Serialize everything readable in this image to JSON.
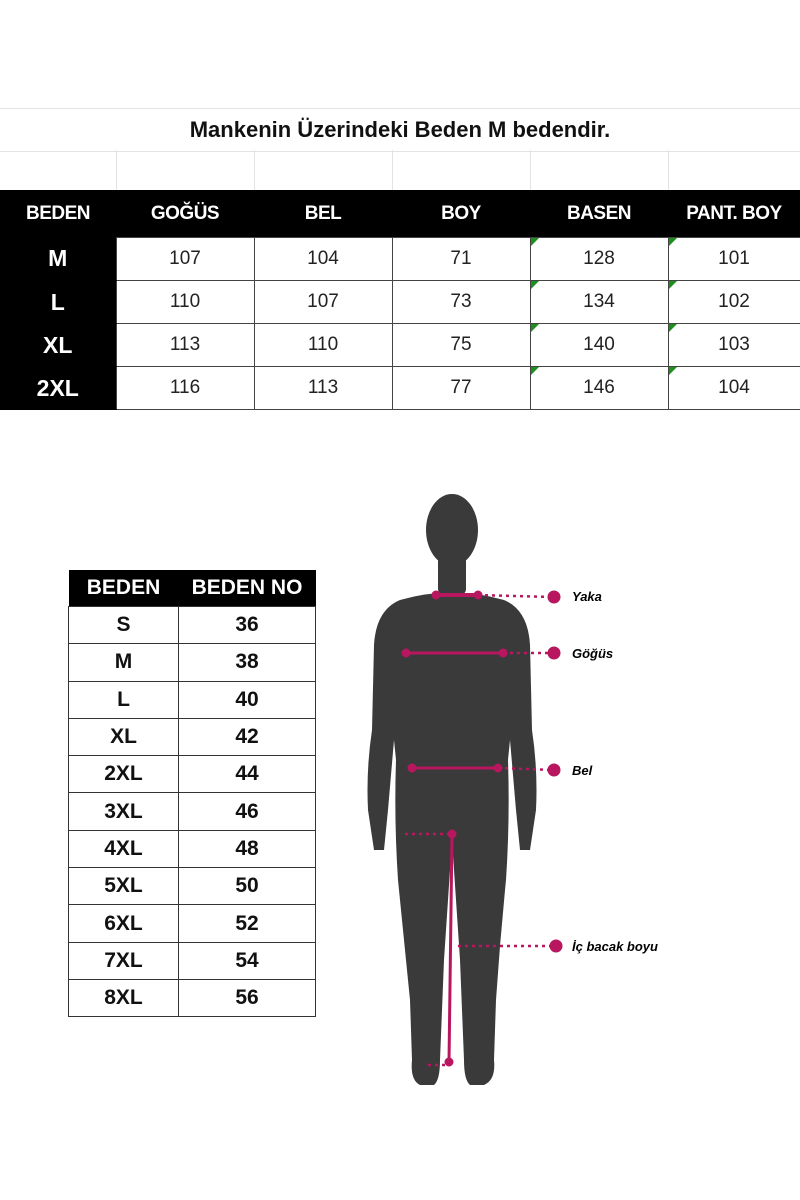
{
  "title": "Mankenin Üzerindeki Beden M bedendir.",
  "measurement_table": {
    "headers": [
      "BEDEN",
      "GOĞÜS",
      "BEL",
      "BOY",
      "BASEN",
      "PANT. BOY"
    ],
    "rows": [
      [
        "M",
        "107",
        "104",
        "71",
        "128",
        "101"
      ],
      [
        "L",
        "110",
        "107",
        "73",
        "134",
        "102"
      ],
      [
        "XL",
        "113",
        "110",
        "75",
        "140",
        "103"
      ],
      [
        "2XL",
        "116",
        "113",
        "77",
        "146",
        "104"
      ]
    ]
  },
  "size_table": {
    "headers": [
      "BEDEN",
      "BEDEN NO"
    ],
    "rows": [
      [
        "S",
        "36"
      ],
      [
        "M",
        "38"
      ],
      [
        "L",
        "40"
      ],
      [
        "XL",
        "42"
      ],
      [
        "2XL",
        "44"
      ],
      [
        "3XL",
        "46"
      ],
      [
        "4XL",
        "48"
      ],
      [
        "5XL",
        "50"
      ],
      [
        "6XL",
        "52"
      ],
      [
        "7XL",
        "54"
      ],
      [
        "8XL",
        "56"
      ]
    ]
  },
  "figure": {
    "labels": {
      "yaka": "Yaka",
      "gogus": "Göğüs",
      "bel": "Bel",
      "ic_bacak": "İç bacak boyu"
    },
    "accent_color": "#b8175f",
    "silhouette_color": "#3a3a3a"
  }
}
